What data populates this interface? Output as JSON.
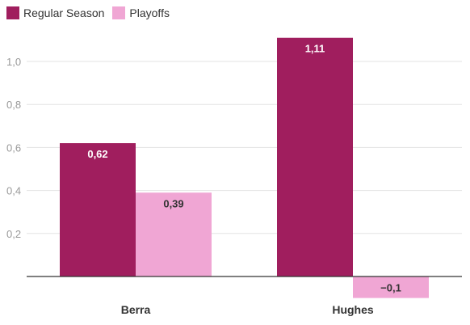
{
  "chart_data": {
    "type": "bar",
    "categories": [
      "Berra",
      "Hughes"
    ],
    "series": [
      {
        "name": "Regular Season",
        "values": [
          0.62,
          1.11
        ],
        "labels": [
          "0,62",
          "1,11"
        ],
        "color": "#a01e5e"
      },
      {
        "name": "Playoffs",
        "values": [
          0.39,
          -0.1
        ],
        "labels": [
          "0,39",
          "−0,1"
        ],
        "color": "#f0a6d4"
      }
    ],
    "yticks": [
      0.2,
      0.4,
      0.6,
      0.8,
      1.0
    ],
    "ytick_labels": [
      "0,2",
      "0,4",
      "0,6",
      "0,8",
      "1,0"
    ],
    "ylim": [
      -0.1,
      1.15
    ],
    "grid": true,
    "legend_position": "top-left",
    "title": "",
    "xlabel": "",
    "ylabel": ""
  }
}
